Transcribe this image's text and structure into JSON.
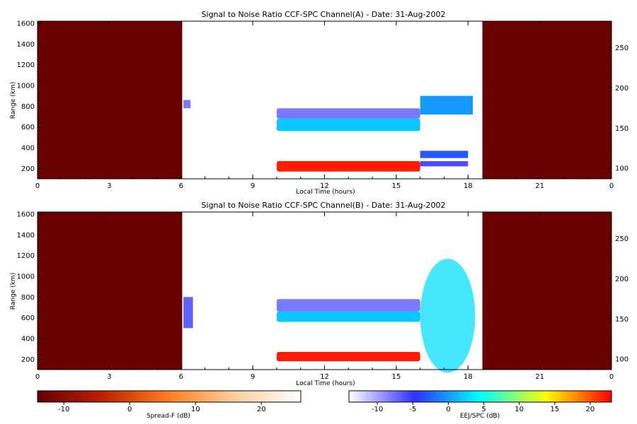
{
  "chart_data": [
    {
      "type": "heatmap",
      "title": "Signal to Noise Ratio CCF-SPC Channel(A) - Date: 31-Aug-2002",
      "xlabel": "Local Time (hours)",
      "ylabel": "Range (km)",
      "x_ticks": [
        "0",
        "3",
        "6",
        "9",
        "12",
        "15",
        "18",
        "21",
        "0"
      ],
      "x_tick_values": [
        0,
        3,
        6,
        9,
        12,
        15,
        18,
        21,
        24
      ],
      "y_ticks": [
        "200",
        "400",
        "600",
        "800",
        "1000",
        "1200",
        "1400",
        "1600"
      ],
      "y_tick_values": [
        200,
        400,
        600,
        800,
        1000,
        1200,
        1400,
        1600
      ],
      "y2_ticks": [
        "100",
        "150",
        "200",
        "250"
      ],
      "y2_tick_values": [
        100,
        150,
        200,
        250
      ],
      "xlim": [
        0,
        24
      ],
      "ylim": [
        100,
        1620
      ],
      "y2lim": [
        87,
        283
      ],
      "colors": {
        "spread_f_night": "#6b0000",
        "eej_strong": "#ff0000",
        "eej_mid": "#33e0d0",
        "eej_weak": "#8890ff"
      },
      "regions": [
        {
          "name": "night-block-evening-morning",
          "x": [
            0,
            6.05
          ],
          "y": [
            100,
            1620
          ],
          "level": -13,
          "scale": "spread_f"
        },
        {
          "name": "night-block-late",
          "x": [
            18.6,
            24
          ],
          "y": [
            100,
            1620
          ],
          "level": -13,
          "scale": "spread_f"
        },
        {
          "name": "eej-strong-band",
          "x": [
            10,
            16
          ],
          "y": [
            170,
            270
          ],
          "level": 22,
          "scale": "eej_spc"
        },
        {
          "name": "eej-mid-band",
          "x": [
            10,
            16
          ],
          "y": [
            560,
            680
          ],
          "level": 2,
          "scale": "eej_spc"
        },
        {
          "name": "eej-weak-band",
          "x": [
            10,
            16
          ],
          "y": [
            680,
            780
          ],
          "level": -8,
          "scale": "eej_spc"
        },
        {
          "name": "afternoon-echo-upper",
          "x": [
            16,
            18.2
          ],
          "y": [
            720,
            900
          ],
          "level": 0,
          "scale": "eej_spc"
        },
        {
          "name": "afternoon-echo-mid",
          "x": [
            16,
            18
          ],
          "y": [
            300,
            370
          ],
          "level": -3,
          "scale": "eej_spc"
        },
        {
          "name": "afternoon-echo-low",
          "x": [
            16,
            18
          ],
          "y": [
            220,
            270
          ],
          "level": -6,
          "scale": "eej_spc"
        },
        {
          "name": "early-echo",
          "x": [
            6.1,
            6.4
          ],
          "y": [
            780,
            860
          ],
          "level": -8,
          "scale": "eej_spc"
        }
      ]
    },
    {
      "type": "heatmap",
      "title": "Signal to Noise Ratio CCF-SPC Channel(B) - Date: 31-Aug-2002",
      "xlabel": "Local Time (hours)",
      "ylabel": "Range (km)",
      "x_ticks": [
        "0",
        "3",
        "6",
        "9",
        "12",
        "15",
        "18",
        "21",
        "0"
      ],
      "x_tick_values": [
        0,
        3,
        6,
        9,
        12,
        15,
        18,
        21,
        24
      ],
      "y_ticks": [
        "200",
        "400",
        "600",
        "800",
        "1000",
        "1200",
        "1400",
        "1600"
      ],
      "y_tick_values": [
        200,
        400,
        600,
        800,
        1000,
        1200,
        1400,
        1600
      ],
      "y2_ticks": [
        "100",
        "150",
        "200",
        "250"
      ],
      "y2_tick_values": [
        100,
        150,
        200,
        250
      ],
      "xlim": [
        0,
        24
      ],
      "ylim": [
        100,
        1620
      ],
      "y2lim": [
        87,
        283
      ],
      "colors": {
        "spread_f_night": "#6b0000",
        "eej_strong": "#ff0000",
        "eej_mid": "#33e0d0",
        "eej_weak": "#8890ff"
      },
      "regions": [
        {
          "name": "night-block-evening-morning",
          "x": [
            0,
            6.05
          ],
          "y": [
            100,
            1620
          ],
          "level": -13,
          "scale": "spread_f"
        },
        {
          "name": "night-block-late",
          "x": [
            18.6,
            24
          ],
          "y": [
            100,
            1620
          ],
          "level": -13,
          "scale": "spread_f"
        },
        {
          "name": "eej-strong-band",
          "x": [
            10,
            16
          ],
          "y": [
            180,
            270
          ],
          "level": 22,
          "scale": "eej_spc"
        },
        {
          "name": "eej-mid-band",
          "x": [
            10,
            16
          ],
          "y": [
            560,
            660
          ],
          "level": 2,
          "scale": "eej_spc"
        },
        {
          "name": "eej-weak-band",
          "x": [
            10,
            16
          ],
          "y": [
            660,
            780
          ],
          "level": -8,
          "scale": "eej_spc"
        },
        {
          "name": "afternoon-plume",
          "x": [
            16,
            18.3
          ],
          "y": [
            240,
            1340
          ],
          "level": 3,
          "scale": "eej_spc"
        },
        {
          "name": "early-echo",
          "x": [
            6.1,
            6.5
          ],
          "y": [
            500,
            800
          ],
          "level": -7,
          "scale": "eej_spc"
        }
      ]
    }
  ],
  "colorbars": [
    {
      "label": "Spread-F (dB)",
      "ticks": [
        "-10",
        "0",
        "10",
        "20"
      ],
      "tick_values": [
        -10,
        0,
        10,
        20
      ],
      "range": [
        -14,
        26
      ],
      "colors": [
        "#600000",
        "#c02000",
        "#ff8020",
        "#ffd0a0",
        "#ffffff"
      ]
    },
    {
      "label": "EEJ/SPC (dB)",
      "ticks": [
        "-10",
        "-5",
        "0",
        "5",
        "10",
        "15",
        "20"
      ],
      "tick_values": [
        -10,
        -5,
        0,
        5,
        10,
        15,
        20
      ],
      "range": [
        -14,
        23
      ],
      "colors": [
        "#ffffff",
        "#3030ff",
        "#00ffff",
        "#ffff00",
        "#ff0000"
      ]
    }
  ]
}
